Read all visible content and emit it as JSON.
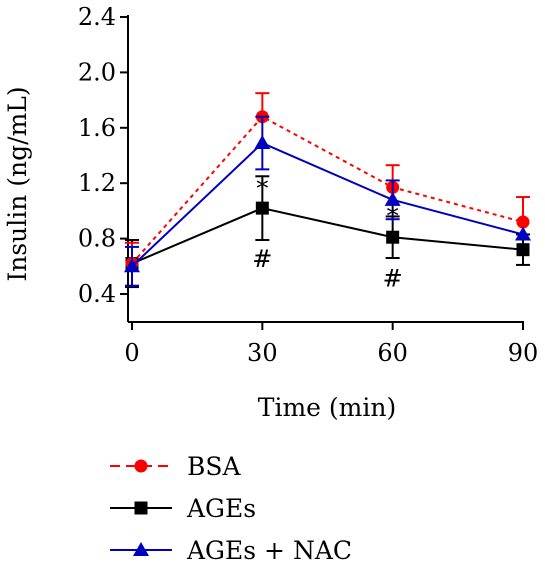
{
  "chart_data": {
    "type": "line",
    "xlabel": "Time (min)",
    "ylabel": "Insulin (ng/mL)",
    "x": [
      0,
      30,
      60,
      90
    ],
    "x_ticks": [
      "0",
      "30",
      "60",
      "90"
    ],
    "y_ticks": [
      "0.4",
      "0.8",
      "1.2",
      "1.6",
      "2.0",
      "2.4"
    ],
    "ylim": [
      0.4,
      2.4
    ],
    "xlim": [
      0,
      90
    ],
    "grid": false,
    "legend_position": "bottom",
    "series": [
      {
        "name": "BSA",
        "color": "#ff0000",
        "line_style": "dotted",
        "marker": "circle",
        "values": [
          0.62,
          1.68,
          1.17,
          0.92
        ],
        "errors": [
          0.15,
          0.17,
          0.16,
          0.18
        ]
      },
      {
        "name": "AGEs",
        "color": "#000000",
        "line_style": "solid",
        "marker": "square",
        "values": [
          0.62,
          1.02,
          0.81,
          0.72
        ],
        "errors": [
          0.17,
          0.23,
          0.15,
          0.11
        ]
      },
      {
        "name": "AGEs + NAC",
        "color": "#0000c0",
        "line_style": "solid",
        "marker": "triangle",
        "values": [
          0.6,
          1.49,
          1.08,
          0.83
        ],
        "errors": [
          0.14,
          0.19,
          0.14,
          0.0
        ]
      }
    ],
    "annotations": [
      {
        "text": "*",
        "x": 30,
        "y": 1.17
      },
      {
        "text": "#",
        "x": 30,
        "y": 0.66
      },
      {
        "text": "*",
        "x": 60,
        "y": 0.97
      },
      {
        "text": "#",
        "x": 60,
        "y": 0.52
      }
    ]
  }
}
